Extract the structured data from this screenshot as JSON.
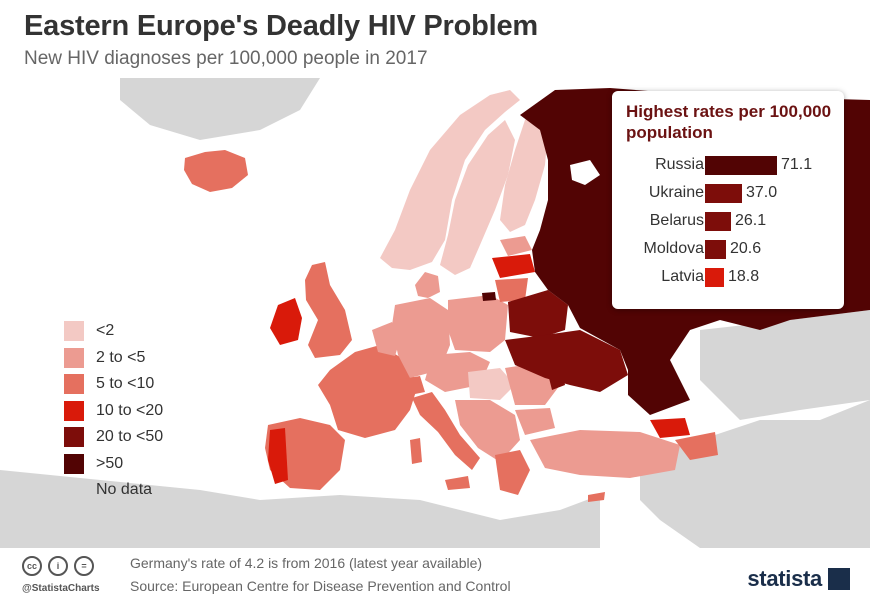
{
  "title": "Eastern Europe's Deadly HIV Problem",
  "subtitle": "New HIV diagnoses per 100,000 people in 2017",
  "legend": [
    {
      "label": "<2",
      "color": "#f3c9c4"
    },
    {
      "label": "2 to <5",
      "color": "#ec9b91"
    },
    {
      "label": "5 to <10",
      "color": "#e5705f"
    },
    {
      "label": "10 to <20",
      "color": "#d91a0a"
    },
    {
      "label": "20 to <50",
      "color": "#7d0d0a"
    },
    {
      "label": ">50",
      "color": "#520404"
    },
    {
      "label": "No data",
      "color": "#d6d6d6"
    }
  ],
  "ranking": {
    "title": "Highest rates per 100,000 population",
    "rows": [
      {
        "country": "Russia",
        "value": "71.1",
        "color": "#520404"
      },
      {
        "country": "Ukraine",
        "value": "37.0",
        "color": "#7d0d0a"
      },
      {
        "country": "Belarus",
        "value": "26.1",
        "color": "#7d0d0a"
      },
      {
        "country": "Moldova",
        "value": "20.6",
        "color": "#7d0d0a"
      },
      {
        "country": "Latvia",
        "value": "18.8",
        "color": "#d91a0a"
      }
    ]
  },
  "chart_data": {
    "type": "bar",
    "title": "Highest rates per 100,000 population",
    "categories": [
      "Russia",
      "Ukraine",
      "Belarus",
      "Moldova",
      "Latvia"
    ],
    "values": [
      71.1,
      37.0,
      26.1,
      20.6,
      18.8
    ]
  },
  "footer": {
    "note": "Germany's rate of 4.2 is from 2016 (latest year available)",
    "source": "Source: European Centre for Disease Prevention and Control",
    "handle": "@StatistaCharts",
    "brand": "statista"
  },
  "colors": {
    "sea": "#ffffff",
    "nodata": "#d6d6d6",
    "text": "#333333",
    "brand": "#1a2e4a"
  }
}
